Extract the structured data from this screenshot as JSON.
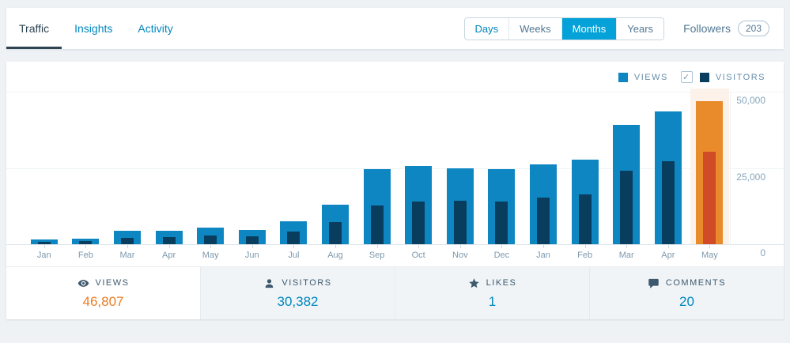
{
  "header": {
    "tabs": [
      {
        "label": "Traffic",
        "active": true
      },
      {
        "label": "Insights",
        "active": false
      },
      {
        "label": "Activity",
        "active": false
      }
    ],
    "period_buttons": [
      {
        "label": "Days",
        "selected": false,
        "link": true
      },
      {
        "label": "Weeks",
        "selected": false,
        "link": false
      },
      {
        "label": "Months",
        "selected": true,
        "link": false
      },
      {
        "label": "Years",
        "selected": false,
        "link": false
      }
    ],
    "followers_label": "Followers",
    "followers_count": "203"
  },
  "legend": {
    "views_label": "VIEWS",
    "visitors_label": "VISITORS",
    "visitors_checkbox_checked": true,
    "check_glyph": "✓"
  },
  "colors": {
    "accent_blue": "#0087be",
    "selected_segment_bg": "#04a2d8",
    "views_bar": "#0d86c1",
    "visitors_bar": "#093d5e",
    "highlight_views_bar": "#e98a2b",
    "highlight_visitors_bar": "#d04b26",
    "highlight_band": "#fdf2e9",
    "views_value_orange": "#e97e23"
  },
  "chart_data": {
    "type": "bar",
    "title": "Monthly traffic: views and visitors",
    "categories": [
      "Jan",
      "Feb",
      "Mar",
      "Apr",
      "May",
      "Jun",
      "Jul",
      "Aug",
      "Sep",
      "Oct",
      "Nov",
      "Dec",
      "Jan",
      "Feb",
      "Mar",
      "Apr",
      "May"
    ],
    "series": [
      {
        "name": "Views",
        "color": "#0d86c1",
        "highlight_color": "#e98a2b",
        "values": [
          1550,
          1900,
          4400,
          4400,
          5400,
          4600,
          7400,
          13000,
          24500,
          25600,
          25000,
          24700,
          26100,
          27600,
          39100,
          43600,
          46807
        ]
      },
      {
        "name": "Visitors",
        "color": "#093d5e",
        "highlight_color": "#d04b26",
        "values": [
          900,
          1000,
          2200,
          2250,
          2800,
          2600,
          4100,
          7200,
          12700,
          13900,
          14200,
          14000,
          15400,
          16300,
          24100,
          27100,
          30382
        ]
      }
    ],
    "highlight_index": 16,
    "highlight_band_color": "#fdf2e9",
    "ylim": [
      0,
      50000
    ],
    "yticks": [
      {
        "value": 50000,
        "label": "50,000"
      },
      {
        "value": 25000,
        "label": "25,000"
      },
      {
        "value": 0,
        "label": "0"
      }
    ],
    "grid": true,
    "legend_position": "top-right"
  },
  "stats": [
    {
      "label": "VIEWS",
      "value": "46,807",
      "icon": "eye-icon",
      "selected": true,
      "value_color": "#e97e23"
    },
    {
      "label": "VISITORS",
      "value": "30,382",
      "icon": "person-icon",
      "selected": false,
      "value_color": "#0087be"
    },
    {
      "label": "LIKES",
      "value": "1",
      "icon": "star-icon",
      "selected": false,
      "value_color": "#0087be"
    },
    {
      "label": "COMMENTS",
      "value": "20",
      "icon": "comment-icon",
      "selected": false,
      "value_color": "#0087be"
    }
  ]
}
